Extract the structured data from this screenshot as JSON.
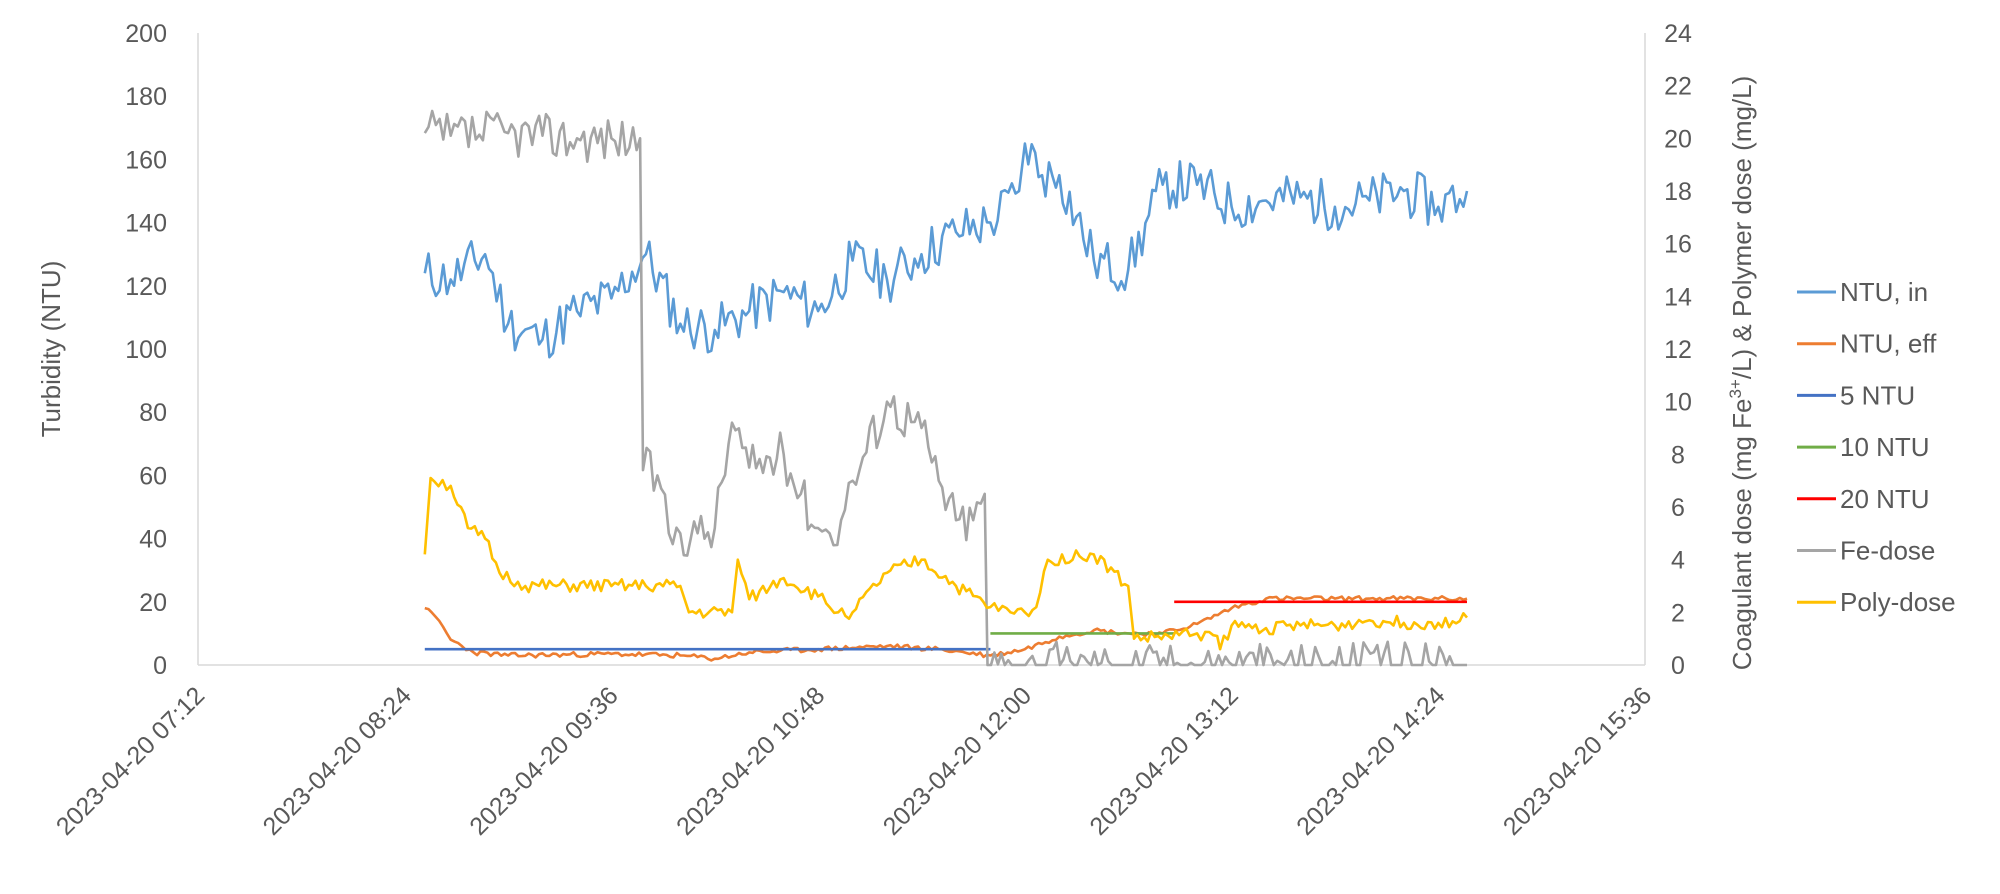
{
  "chart_data": {
    "type": "line",
    "title": "",
    "xlabel": "",
    "ylabel": "Turbidity (NTU)",
    "y2label_parts": [
      "Coagulant dose (mg Fe",
      "3+",
      "/L) & Polymer dose (mg/L)"
    ],
    "xlim": [
      "2023-04-20 07:12",
      "2023-04-20 15:36"
    ],
    "ylim": [
      0,
      200
    ],
    "y2lim": [
      0,
      24
    ],
    "x_ticks": [
      "2023-04-20 07:12",
      "2023-04-20 08:24",
      "2023-04-20 09:36",
      "2023-04-20 10:48",
      "2023-04-20 12:00",
      "2023-04-20 13:12",
      "2023-04-20 14:24",
      "2023-04-20 15:36"
    ],
    "y_ticks": [
      "0",
      "20",
      "40",
      "60",
      "80",
      "100",
      "120",
      "140",
      "160",
      "180",
      "200"
    ],
    "y2_ticks": [
      "0",
      "2",
      "4",
      "6",
      "8",
      "10",
      "12",
      "14",
      "16",
      "18",
      "20",
      "22",
      "24"
    ],
    "grid": false,
    "legend_position": "right",
    "series": [
      {
        "name": "NTU, in",
        "color": "#5B9BD5",
        "axis": "left",
        "noise": 8,
        "seed": 11,
        "points": [
          [
            "08:31",
            124
          ],
          [
            "08:40",
            122
          ],
          [
            "08:52",
            130
          ],
          [
            "09:00",
            108
          ],
          [
            "09:12",
            103
          ],
          [
            "09:24",
            112
          ],
          [
            "09:36",
            116
          ],
          [
            "09:48",
            130
          ],
          [
            "10:00",
            108
          ],
          [
            "10:12",
            106
          ],
          [
            "10:24",
            112
          ],
          [
            "10:36",
            118
          ],
          [
            "10:48",
            112
          ],
          [
            "11:00",
            128
          ],
          [
            "11:12",
            122
          ],
          [
            "11:24",
            130
          ],
          [
            "11:36",
            137
          ],
          [
            "11:48",
            140
          ],
          [
            "11:58",
            150
          ],
          [
            "12:00",
            165
          ],
          [
            "12:06",
            155
          ],
          [
            "12:12",
            155
          ],
          [
            "12:24",
            128
          ],
          [
            "12:36",
            125
          ],
          [
            "12:48",
            152
          ],
          [
            "13:00",
            152
          ],
          [
            "13:12",
            145
          ],
          [
            "13:24",
            147
          ],
          [
            "13:36",
            148
          ],
          [
            "13:48",
            145
          ],
          [
            "14:00",
            147
          ],
          [
            "14:12",
            150
          ],
          [
            "14:24",
            145
          ],
          [
            "14:34",
            150
          ]
        ]
      },
      {
        "name": "NTU, eff",
        "color": "#ED7D31",
        "axis": "left",
        "noise": 0.8,
        "seed": 23,
        "points": [
          [
            "08:31",
            18
          ],
          [
            "08:36",
            14
          ],
          [
            "08:40",
            8
          ],
          [
            "08:48",
            4
          ],
          [
            "09:00",
            3
          ],
          [
            "09:36",
            3.5
          ],
          [
            "10:00",
            3
          ],
          [
            "10:12",
            2
          ],
          [
            "10:24",
            4
          ],
          [
            "10:48",
            5
          ],
          [
            "11:12",
            6
          ],
          [
            "11:30",
            5
          ],
          [
            "11:48",
            3
          ],
          [
            "12:00",
            5
          ],
          [
            "12:12",
            9
          ],
          [
            "12:24",
            11
          ],
          [
            "12:36",
            10
          ],
          [
            "12:48",
            10
          ],
          [
            "13:00",
            13
          ],
          [
            "13:12",
            18
          ],
          [
            "13:24",
            21
          ],
          [
            "13:48",
            21
          ],
          [
            "14:00",
            21
          ],
          [
            "14:24",
            21
          ],
          [
            "14:34",
            21
          ]
        ]
      },
      {
        "name": "5 NTU",
        "color": "#4472C4",
        "axis": "left",
        "noise": 0,
        "seed": 0,
        "points": [
          [
            "08:31",
            5
          ],
          [
            "11:48",
            5
          ]
        ]
      },
      {
        "name": "10 NTU",
        "color": "#70AD47",
        "axis": "left",
        "noise": 0,
        "seed": 0,
        "points": [
          [
            "11:48",
            10
          ],
          [
            "12:52",
            10
          ]
        ]
      },
      {
        "name": "20 NTU",
        "color": "#FF0000",
        "axis": "left",
        "noise": 0,
        "seed": 0,
        "points": [
          [
            "12:52",
            20
          ],
          [
            "14:34",
            20
          ]
        ]
      },
      {
        "name": "Fe-dose",
        "color": "#A5A5A5",
        "axis": "right",
        "noise": 0.9,
        "seed": 37,
        "points": [
          [
            "08:31",
            20.2
          ],
          [
            "08:40",
            20.1
          ],
          [
            "09:00",
            20.2
          ],
          [
            "09:12",
            20.1
          ],
          [
            "09:24",
            20
          ],
          [
            "09:36",
            20
          ],
          [
            "09:46",
            20
          ],
          [
            "09:47",
            7.4
          ],
          [
            "09:52",
            7.2
          ],
          [
            "09:56",
            5
          ],
          [
            "10:00",
            5
          ],
          [
            "10:06",
            5
          ],
          [
            "10:12",
            5.2
          ],
          [
            "10:18",
            9.2
          ],
          [
            "10:24",
            7.5
          ],
          [
            "10:36",
            8
          ],
          [
            "10:42",
            6.5
          ],
          [
            "10:48",
            5.2
          ],
          [
            "10:52",
            5
          ],
          [
            "10:56",
            5.5
          ],
          [
            "11:00",
            7
          ],
          [
            "11:12",
            10
          ],
          [
            "11:24",
            9
          ],
          [
            "11:30",
            7
          ],
          [
            "11:36",
            5.5
          ],
          [
            "11:42",
            5.5
          ],
          [
            "11:46",
            6.5
          ],
          [
            "11:47",
            0
          ],
          [
            "14:34",
            0
          ]
        ]
      },
      {
        "name": "Poly-dose",
        "color": "#FFC000",
        "axis": "right",
        "noise": 0.25,
        "seed": 51,
        "points": [
          [
            "08:31",
            4.2
          ],
          [
            "08:33",
            7.1
          ],
          [
            "08:40",
            6.8
          ],
          [
            "08:46",
            5.2
          ],
          [
            "08:52",
            4.8
          ],
          [
            "08:57",
            3.5
          ],
          [
            "09:06",
            3
          ],
          [
            "09:36",
            3
          ],
          [
            "09:48",
            3
          ],
          [
            "10:00",
            3
          ],
          [
            "10:03",
            2
          ],
          [
            "10:18",
            2
          ],
          [
            "10:20",
            4
          ],
          [
            "10:24",
            2.5
          ],
          [
            "10:36",
            3.3
          ],
          [
            "10:48",
            2.6
          ],
          [
            "10:55",
            2
          ],
          [
            "11:00",
            2
          ],
          [
            "11:12",
            3.5
          ],
          [
            "11:24",
            4
          ],
          [
            "11:36",
            3
          ],
          [
            "11:48",
            2.2
          ],
          [
            "11:55",
            2
          ],
          [
            "12:00",
            2
          ],
          [
            "12:04",
            2.2
          ],
          [
            "12:08",
            4
          ],
          [
            "12:24",
            4.2
          ],
          [
            "12:36",
            3
          ],
          [
            "12:38",
            1
          ],
          [
            "12:50",
            1.1
          ],
          [
            "13:00",
            1.2
          ],
          [
            "13:07",
            1.1
          ],
          [
            "13:08",
            0.6
          ],
          [
            "13:12",
            1.5
          ],
          [
            "13:24",
            1.4
          ],
          [
            "13:36",
            1.5
          ],
          [
            "13:48",
            1.5
          ],
          [
            "14:00",
            1.7
          ],
          [
            "14:12",
            1.6
          ],
          [
            "14:24",
            1.6
          ],
          [
            "14:34",
            1.8
          ]
        ]
      }
    ]
  }
}
